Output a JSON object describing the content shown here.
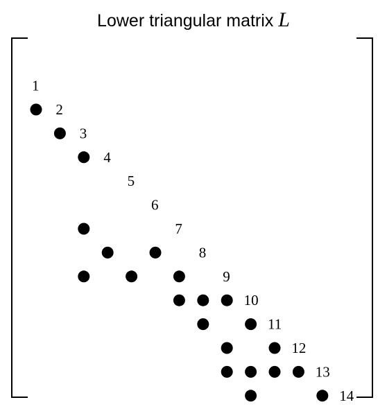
{
  "diagram": {
    "title": "Lower triangular matrix",
    "title_symbol": "L",
    "size": 14,
    "diagonal_labels": [
      "1",
      "2",
      "3",
      "4",
      "5",
      "6",
      "7",
      "8",
      "9",
      "10",
      "11",
      "12",
      "13",
      "14"
    ],
    "nonzeros": [
      [
        2,
        1
      ],
      [
        3,
        2
      ],
      [
        4,
        3
      ],
      [
        7,
        3
      ],
      [
        8,
        4
      ],
      [
        8,
        6
      ],
      [
        9,
        3
      ],
      [
        9,
        5
      ],
      [
        9,
        7
      ],
      [
        10,
        7
      ],
      [
        10,
        8
      ],
      [
        10,
        9
      ],
      [
        11,
        8
      ],
      [
        11,
        10
      ],
      [
        12,
        9
      ],
      [
        12,
        11
      ],
      [
        13,
        9
      ],
      [
        13,
        10
      ],
      [
        13,
        11
      ],
      [
        13,
        12
      ],
      [
        14,
        10
      ],
      [
        14,
        13
      ]
    ],
    "dot_color": "#000000",
    "line_color": "#000000"
  }
}
